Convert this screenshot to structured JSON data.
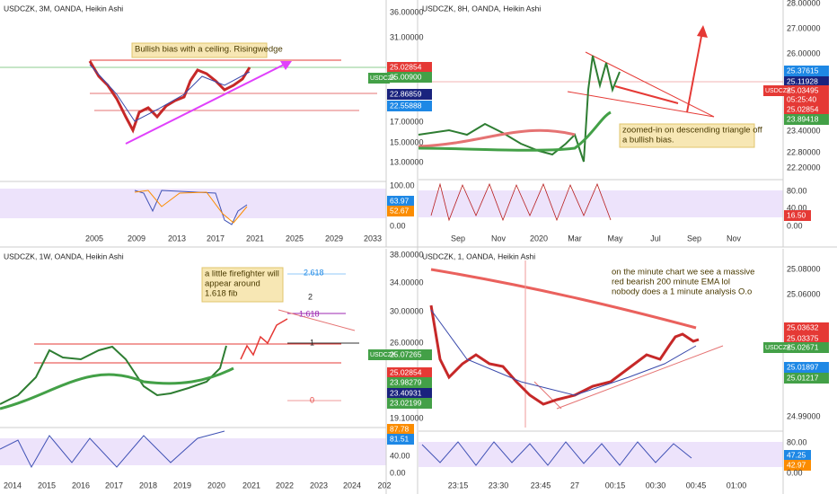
{
  "panels": [
    {
      "title": "USDCZK, 3M, OANDA, Heikin Ashi",
      "annotation": [
        "Bullish bias with a ceiling. Risingwedge"
      ],
      "symbol_tag": "USDCZK",
      "price_axis": [
        "36.00000",
        "31.00000",
        "17.00000",
        "15.00000",
        "13.00000"
      ],
      "price_tags": [
        "25.02854",
        "25.00900",
        "22.86859",
        "22.55888"
      ],
      "oscillator_axis": [
        "100.00",
        "63.97",
        "52.67",
        "0.00"
      ],
      "time_axis": [
        "2005",
        "2009",
        "2013",
        "2017",
        "2021",
        "2025",
        "2029",
        "2033"
      ]
    },
    {
      "title": "USDCZK, 8H, OANDA, Heikin Ashi",
      "annotation": [
        "zoomed-in on descending triangle off",
        "a bullish bias."
      ],
      "symbol_tag": "USDCZK",
      "price_axis": [
        "28.00000",
        "27.00000",
        "26.00000",
        "23.40000",
        "22.80000",
        "22.20000"
      ],
      "price_tags": [
        "25.37615",
        "25.11928",
        "25.03495",
        "05:25:40",
        "25.02854",
        "23.89418"
      ],
      "oscillator_axis": [
        "80.00",
        "40.00",
        "16.50",
        "0.00"
      ],
      "time_axis": [
        "Sep",
        "Nov",
        "2020",
        "Mar",
        "May",
        "Jul",
        "Sep",
        "Nov"
      ]
    },
    {
      "title": "USDCZK, 1W, OANDA, Heikin Ashi",
      "annotation": [
        "a little firefighter will",
        "appear around",
        "1.618 fib"
      ],
      "symbol_tag": "USDCZK",
      "price_axis": [
        "38.00000",
        "34.00000",
        "30.00000",
        "26.00000",
        "19.10000"
      ],
      "price_tags": [
        "25.07265",
        "25.02854",
        "23.98279",
        "23.40931",
        "23.02199"
      ],
      "fib_levels": [
        "2.618",
        "2",
        "1.618",
        "1",
        "0"
      ],
      "oscillator_axis": [
        "87.78",
        "81.51",
        "40.00",
        "0.00"
      ],
      "time_axis": [
        "2014",
        "2015",
        "2016",
        "2017",
        "2018",
        "2019",
        "2020",
        "2021",
        "2022",
        "2023",
        "2024",
        "202"
      ]
    },
    {
      "title": "USDCZK, 1, OANDA, Heikin Ashi",
      "annotation": [
        "on the minute chart we see a massive",
        "red bearish 200 minute EMA lol",
        "nobody does a 1 minute analysis O.o"
      ],
      "symbol_tag": "USDCZK",
      "price_axis": [
        "25.08000",
        "25.06000",
        "24.99000"
      ],
      "price_tags": [
        "25.03632",
        "25.03375",
        "25.02671",
        "25.01897",
        "25.01217"
      ],
      "oscillator_axis": [
        "80.00",
        "47.25",
        "42.97",
        "0.00"
      ],
      "time_axis": [
        "23:15",
        "23:30",
        "23:45",
        "27",
        "00:15",
        "00:30",
        "00:45",
        "01:00"
      ]
    }
  ]
}
